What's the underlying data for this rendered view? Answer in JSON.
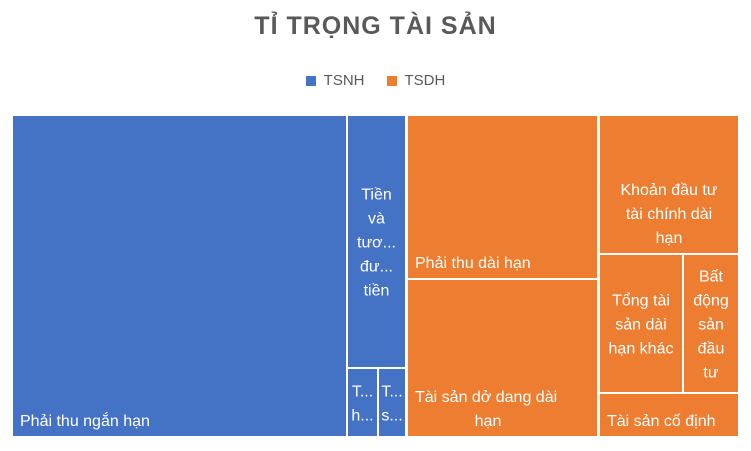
{
  "chart_data": {
    "type": "treemap",
    "title": "TỈ TRỌNG TÀI SẢN",
    "legend": [
      {
        "name": "TSNH",
        "color": "#4472C4"
      },
      {
        "name": "TSDH",
        "color": "#ED7D31"
      }
    ],
    "legend_position": "top",
    "groups": [
      {
        "name": "TSNH",
        "color": "#4472C4",
        "items": [
          {
            "label": "Phải thu ngắn hạn",
            "display": [
              "Phải thu ngắn hạn"
            ],
            "value": 336
          },
          {
            "label": "Tiền và tương đương tiền",
            "display": [
              "Tiền",
              "và",
              "tươ...",
              "đư...",
              "tiền"
            ],
            "value": 30
          },
          {
            "label": "T... h...",
            "display": [
              "T...",
              "h..."
            ],
            "value": 4
          },
          {
            "label": "T... s...",
            "display": [
              "T...",
              "s..."
            ],
            "value": 4
          }
        ]
      },
      {
        "name": "TSDH",
        "color": "#ED7D31",
        "items": [
          {
            "label": "Phải thu dài hạn",
            "display": [
              "Phải thu dài hạn"
            ],
            "value": 98
          },
          {
            "label": "Tài sản dở dang dài hạn",
            "display": [
              "Tài sản dở dang dài",
              "hạn"
            ],
            "value": 94
          },
          {
            "label": "Khoản đầu tư tài chính dài hạn",
            "display": [
              "Khoản đầu tư",
              "tài chính dài",
              "hạn"
            ],
            "value": 46
          },
          {
            "label": "Tổng tài sản dài hạn khác",
            "display": [
              "Tổng tài",
              "sản dài",
              "hạn khác"
            ],
            "value": 28
          },
          {
            "label": "Bất động sản đầu tư",
            "display": [
              "Bất",
              "động",
              "sản",
              "đầu",
              "tư"
            ],
            "value": 22
          },
          {
            "label": "Tài sản cố định",
            "display": [
              "Tài sản cố định"
            ],
            "value": 15
          }
        ]
      }
    ]
  }
}
